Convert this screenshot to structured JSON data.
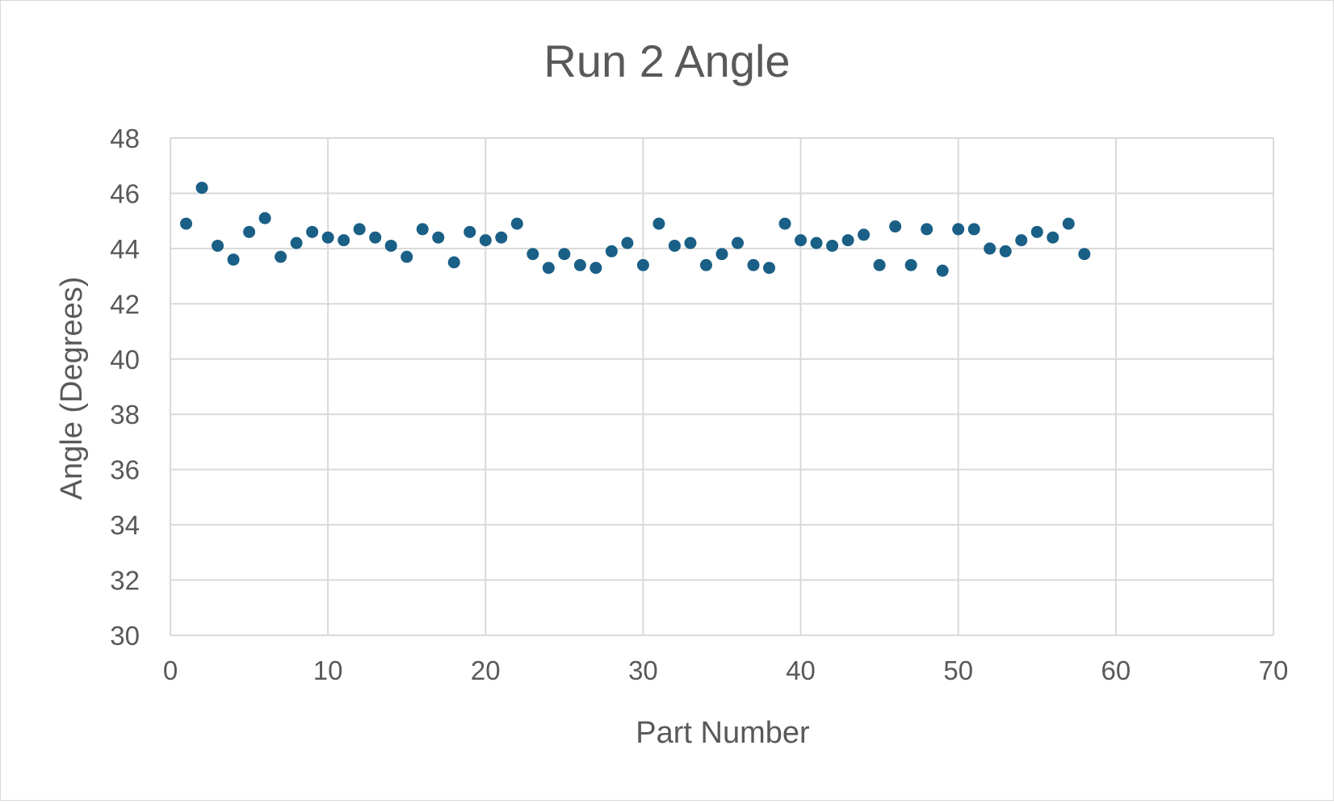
{
  "chart_data": {
    "type": "scatter",
    "title": "Run 2 Angle",
    "xlabel": "Part Number",
    "ylabel": "Angle (Degrees)",
    "xlim": [
      0,
      70
    ],
    "ylim": [
      30,
      48
    ],
    "xticks": [
      0,
      10,
      20,
      30,
      40,
      50,
      60,
      70
    ],
    "yticks": [
      30,
      32,
      34,
      36,
      38,
      40,
      42,
      44,
      46,
      48
    ],
    "grid": true,
    "legend": "none",
    "marker_color": "#1a5f86",
    "series": [
      {
        "x": [
          1,
          2,
          3,
          4,
          5,
          6,
          7,
          8,
          9,
          10,
          11,
          12,
          13,
          14,
          15,
          16,
          17,
          18,
          19,
          20,
          21,
          22,
          23,
          24,
          25,
          26,
          27,
          28,
          29,
          30,
          31,
          32,
          33,
          34,
          35,
          36,
          37,
          38,
          39,
          40,
          41,
          42,
          43,
          44,
          45,
          46,
          47,
          48,
          49,
          50,
          51,
          52,
          53,
          54,
          55,
          56,
          57,
          58
        ],
        "y": [
          44.9,
          46.2,
          44.1,
          43.6,
          44.6,
          45.1,
          43.7,
          44.2,
          44.6,
          44.4,
          44.3,
          44.7,
          44.4,
          44.1,
          43.7,
          44.7,
          44.4,
          43.5,
          44.6,
          44.3,
          44.4,
          44.9,
          43.8,
          43.3,
          43.8,
          43.4,
          43.3,
          43.9,
          44.2,
          43.4,
          44.9,
          44.1,
          44.2,
          43.4,
          43.8,
          44.2,
          43.4,
          43.3,
          44.9,
          44.3,
          44.2,
          44.1,
          44.3,
          44.5,
          43.4,
          44.8,
          43.4,
          44.7,
          43.2,
          44.7,
          44.7,
          44.0,
          43.9,
          44.3,
          44.6,
          44.4,
          44.9,
          43.8
        ]
      }
    ]
  }
}
